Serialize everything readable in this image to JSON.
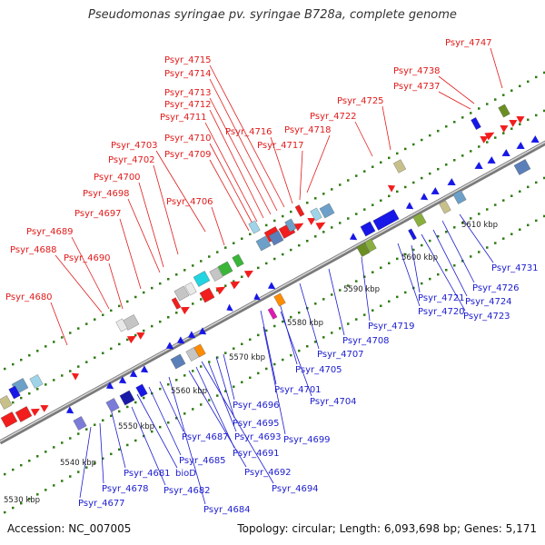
{
  "title": "Pseudomonas syringae pv. syringae B728a, complete genome",
  "footer": {
    "accession": "Accession: NC_007005",
    "summary": "Topology: circular; Length: 6,093,698 bp; Genes: 5,171"
  },
  "colors": {
    "forward_label": "#e11b1b",
    "reverse_label": "#1c1ccf",
    "backbone": "#7a7a7a",
    "dots": "#2f7d12"
  },
  "ticks": [
    "5530 kbp",
    "5540 kbp",
    "5550 kbp",
    "5560 kbp",
    "5570 kbp",
    "5580 kbp",
    "5590 kbp",
    "5600 kbp",
    "5610 kbp"
  ],
  "forward_genes": [
    "Psyr_4747",
    "Psyr_4738",
    "Psyr_4737",
    "Psyr_4725",
    "Psyr_4722",
    "Psyr_4718",
    "Psyr_4717",
    "Psyr_4716",
    "Psyr_4715",
    "Psyr_4714",
    "Psyr_4713",
    "Psyr_4712",
    "Psyr_4711",
    "Psyr_4710",
    "Psyr_4709",
    "Psyr_4703",
    "Psyr_4702",
    "Psyr_4700",
    "Psyr_4698",
    "Psyr_4706",
    "Psyr_4697",
    "Psyr_4689",
    "Psyr_4688",
    "Psyr_4690",
    "Psyr_4680"
  ],
  "reverse_genes": [
    "Psyr_4731",
    "Psyr_4726",
    "Psyr_4724",
    "Psyr_4723",
    "Psyr_4721",
    "Psyr_4720",
    "Psyr_4719",
    "Psyr_4708",
    "Psyr_4707",
    "Psyr_4705",
    "Psyr_4701",
    "Psyr_4704",
    "Psyr_4696",
    "Psyr_4695",
    "Psyr_4693",
    "Psyr_4699",
    "Psyr_4687",
    "Psyr_4691",
    "Psyr_4685",
    "Psyr_4692",
    "Psyr_4681",
    "bioD",
    "Psyr_4694",
    "Psyr_4678",
    "Psyr_4682",
    "Psyr_4677",
    "Psyr_4684"
  ]
}
